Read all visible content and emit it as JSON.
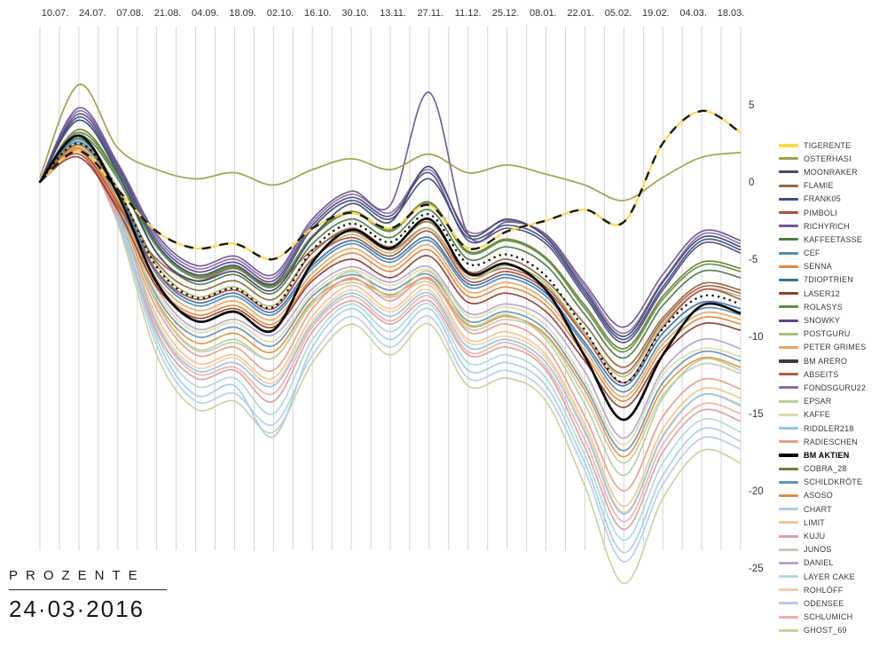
{
  "footer": {
    "title": "PROZENTE",
    "date": "24·03·2016"
  },
  "chart_data": {
    "type": "line",
    "title": "",
    "xlabel": "",
    "ylabel": "Prozente",
    "ylim": [
      -28,
      7
    ],
    "grid": "vertical-weekly",
    "legend_position": "right",
    "y_ticks": [
      5,
      0,
      -5,
      -10,
      -15,
      -20,
      -25
    ],
    "x_labels": [
      "10.07.",
      "24.07.",
      "07.08.",
      "21.08.",
      "04.09.",
      "18.09.",
      "02.10.",
      "16.10.",
      "30.10.",
      "13.11.",
      "27.11.",
      "11.12.",
      "25.12.",
      "08.01.",
      "22.01.",
      "05.02.",
      "19.02.",
      "04.03.",
      "18.03."
    ],
    "series": [
      {
        "name": "TIGERENTE",
        "color": "#ffd84d",
        "style": "duo-dash",
        "width": 2.4,
        "values": [
          0,
          2.0,
          -0.5,
          -3.2,
          -4.3,
          -4.0,
          -5.0,
          -3.0,
          -2.0,
          -3.0,
          -1.5,
          -4.3,
          -3.2,
          -2.5,
          -1.8,
          -2.6,
          2.5,
          4.6,
          3.2
        ]
      },
      {
        "name": "OSTERHASI",
        "color": "#a3a04f",
        "style": "solid",
        "width": 1.8,
        "values": [
          0.3,
          6.3,
          2.2,
          0.8,
          0.2,
          0.6,
          -0.2,
          0.8,
          1.5,
          0.8,
          1.8,
          0.6,
          1.1,
          0.5,
          -0.2,
          -1.2,
          0.3,
          1.6,
          1.9
        ]
      },
      {
        "name": "MOONRAKER",
        "color": "#46466e",
        "style": "solid",
        "width": 1.7,
        "values": [
          0,
          4.0,
          0.6,
          -4.6,
          -6.4,
          -5.8,
          -7.0,
          -3.6,
          -1.4,
          -2.6,
          1.0,
          -3.4,
          -2.4,
          -3.6,
          -7.0,
          -10.0,
          -6.5,
          -3.6,
          -4.2
        ]
      },
      {
        "name": "FLAMIE",
        "color": "#8f6b3f",
        "style": "solid",
        "width": 1.7,
        "values": [
          0,
          2.4,
          -0.6,
          -5.2,
          -7.0,
          -6.4,
          -7.6,
          -4.6,
          -3.0,
          -4.2,
          -2.6,
          -5.8,
          -5.0,
          -6.4,
          -9.2,
          -12.0,
          -8.8,
          -6.6,
          -7.0
        ]
      },
      {
        "name": "FRANK05",
        "color": "#39537f",
        "style": "solid",
        "width": 1.7,
        "values": [
          0,
          4.2,
          0.8,
          -4.0,
          -6.0,
          -5.4,
          -6.6,
          -3.0,
          -1.2,
          -2.4,
          0.2,
          -3.6,
          -2.8,
          -3.8,
          -7.2,
          -10.2,
          -6.8,
          -3.8,
          -4.4
        ]
      },
      {
        "name": "PIMBOLI",
        "color": "#b0513f",
        "style": "solid",
        "width": 1.7,
        "values": [
          0,
          2.0,
          -1.4,
          -5.8,
          -7.6,
          -7.0,
          -8.2,
          -5.0,
          -3.6,
          -4.8,
          -3.2,
          -6.4,
          -5.8,
          -7.0,
          -10.0,
          -13.0,
          -9.4,
          -7.0,
          -7.6
        ]
      },
      {
        "name": "RICHYRICH",
        "color": "#715694",
        "style": "solid",
        "width": 1.7,
        "values": [
          0,
          4.8,
          1.2,
          -3.4,
          -5.4,
          -4.8,
          -6.0,
          -2.4,
          -0.6,
          -1.5,
          5.8,
          -3.4,
          -2.6,
          -3.4,
          -6.6,
          -9.4,
          -6.0,
          -3.2,
          -3.8
        ]
      },
      {
        "name": "KAFFEETASSE",
        "color": "#4f7d46",
        "style": "solid",
        "width": 1.7,
        "values": [
          0,
          3.0,
          0.2,
          -4.6,
          -6.6,
          -6.0,
          -7.2,
          -4.0,
          -2.4,
          -3.6,
          -1.8,
          -5.0,
          -4.2,
          -5.4,
          -8.6,
          -11.4,
          -8.0,
          -5.8,
          -6.2
        ]
      },
      {
        "name": "CEF",
        "color": "#4d8cba",
        "style": "solid",
        "width": 1.7,
        "values": [
          0,
          2.6,
          -0.8,
          -6.0,
          -8.0,
          -7.4,
          -8.6,
          -5.6,
          -4.0,
          -5.2,
          -3.8,
          -6.8,
          -6.2,
          -7.4,
          -10.6,
          -13.6,
          -10.2,
          -8.2,
          -8.6
        ]
      },
      {
        "name": "SENNA",
        "color": "#e2873f",
        "style": "solid",
        "width": 1.7,
        "values": [
          0,
          2.2,
          -1.2,
          -6.6,
          -8.6,
          -8.0,
          -9.2,
          -6.2,
          -4.6,
          -5.8,
          -4.4,
          -7.4,
          -6.8,
          -8.0,
          -11.2,
          -14.2,
          -10.8,
          -8.8,
          -9.2
        ]
      },
      {
        "name": "7DIOPTRIEN",
        "color": "#3f6f9f",
        "style": "solid",
        "width": 1.7,
        "values": [
          0,
          2.8,
          -0.6,
          -5.8,
          -7.8,
          -7.2,
          -8.4,
          -5.4,
          -3.8,
          -5.0,
          -3.6,
          -6.6,
          -6.0,
          -7.2,
          -10.4,
          -13.2,
          -9.8,
          -7.8,
          -8.2
        ]
      },
      {
        "name": "LASER12",
        "color": "#963e30",
        "style": "solid",
        "width": 1.7,
        "values": [
          0,
          1.6,
          -1.8,
          -6.8,
          -8.8,
          -8.2,
          -9.4,
          -6.4,
          -5.0,
          -6.2,
          -4.8,
          -7.8,
          -7.2,
          -8.4,
          -11.6,
          -14.6,
          -11.2,
          -9.2,
          -9.6
        ]
      },
      {
        "name": "ROLASYS",
        "color": "#5f8f44",
        "style": "solid",
        "width": 1.7,
        "values": [
          0,
          3.2,
          0.4,
          -4.2,
          -6.2,
          -5.6,
          -6.8,
          -3.6,
          -2.0,
          -3.2,
          -1.4,
          -4.6,
          -3.8,
          -5.0,
          -8.2,
          -11.0,
          -7.6,
          -5.4,
          -5.8
        ]
      },
      {
        "name": "SNOWKY",
        "color": "#584a86",
        "style": "solid",
        "width": 1.7,
        "values": [
          0,
          4.4,
          1.0,
          -3.8,
          -5.8,
          -5.2,
          -6.4,
          -2.8,
          -1.0,
          -2.2,
          0.6,
          -3.8,
          -3.0,
          -4.0,
          -7.4,
          -10.4,
          -7.0,
          -4.0,
          -4.6
        ]
      },
      {
        "name": "POSTGURU",
        "color": "#a9c178",
        "style": "solid",
        "width": 1.7,
        "values": [
          0,
          2.9,
          -0.4,
          -5.4,
          -7.4,
          -6.8,
          -8.0,
          -5.0,
          -3.4,
          -4.6,
          -3.0,
          -6.2,
          -5.4,
          -6.6,
          -9.8,
          -12.6,
          -9.2,
          -7.0,
          -7.4
        ]
      },
      {
        "name": "PETER GRIMES",
        "color": "#eda55f",
        "style": "solid",
        "width": 1.7,
        "values": [
          0,
          2.1,
          -1.3,
          -6.3,
          -8.3,
          -7.7,
          -8.9,
          -5.9,
          -4.3,
          -5.5,
          -4.1,
          -7.1,
          -6.5,
          -7.7,
          -10.9,
          -13.9,
          -10.5,
          -8.5,
          -8.9
        ]
      },
      {
        "name": "BM ARERO",
        "color": "#3c3c3c",
        "style": "dotted",
        "width": 2.6,
        "values": [
          0,
          2.5,
          -0.5,
          -5.5,
          -7.5,
          -6.9,
          -8.1,
          -4.4,
          -2.7,
          -3.9,
          -2.1,
          -5.3,
          -4.7,
          -6.1,
          -9.6,
          -13.0,
          -9.5,
          -7.4,
          -7.9
        ]
      },
      {
        "name": "ABSEITS",
        "color": "#b35b48",
        "style": "solid",
        "width": 1.7,
        "values": [
          0,
          1.8,
          -1.6,
          -5.0,
          -6.4,
          -5.6,
          -6.6,
          -4.4,
          -3.2,
          -4.4,
          -3.0,
          -6.0,
          -5.6,
          -6.8,
          -9.8,
          -12.4,
          -9.0,
          -6.8,
          -7.2
        ]
      },
      {
        "name": "FONDSGURU22",
        "color": "#8a6fa8",
        "style": "solid",
        "width": 1.7,
        "values": [
          0,
          4.6,
          1.1,
          -3.6,
          -5.6,
          -5.0,
          -6.2,
          -2.6,
          -0.8,
          -2.0,
          0.8,
          -3.2,
          -2.5,
          -3.5,
          -6.8,
          -9.8,
          -6.4,
          -3.4,
          -4.0
        ]
      },
      {
        "name": "EPSAR",
        "color": "#b9cf9a",
        "style": "solid",
        "width": 1.7,
        "values": [
          0,
          2.7,
          -1.0,
          -7.8,
          -10.8,
          -10.2,
          -11.4,
          -7.8,
          -5.8,
          -7.4,
          -5.8,
          -9.2,
          -8.6,
          -10.2,
          -14.4,
          -19.0,
          -14.0,
          -11.5,
          -12.2
        ]
      },
      {
        "name": "KAFFE",
        "color": "#e3d9a8",
        "style": "solid",
        "width": 1.7,
        "values": [
          0,
          2.3,
          -1.7,
          -7.2,
          -9.7,
          -9.1,
          -10.3,
          -7.2,
          -5.7,
          -6.7,
          -5.7,
          -8.7,
          -8.1,
          -9.3,
          -12.9,
          -17.0,
          -12.5,
          -10.8,
          -11.3
        ]
      },
      {
        "name": "RIDDLER218",
        "color": "#8ec6e6",
        "style": "solid",
        "width": 1.7,
        "values": [
          0,
          2.5,
          -1.9,
          -9.2,
          -12.2,
          -11.7,
          -13.2,
          -9.2,
          -7.2,
          -8.7,
          -7.2,
          -10.7,
          -10.2,
          -11.7,
          -16.2,
          -21.5,
          -16.5,
          -13.8,
          -14.5
        ]
      },
      {
        "name": "RADIESCHEN",
        "color": "#eb9c8b",
        "style": "solid",
        "width": 1.7,
        "values": [
          0,
          2.1,
          -2.1,
          -8.2,
          -11.2,
          -10.7,
          -12.2,
          -8.2,
          -6.2,
          -7.7,
          -6.2,
          -9.7,
          -9.2,
          -10.7,
          -15.2,
          -20.0,
          -15.2,
          -12.8,
          -13.4
        ]
      },
      {
        "name": "BM AKTIEN",
        "color": "#000000",
        "style": "solid",
        "width": 2.8,
        "emphasis": true,
        "values": [
          0,
          3.0,
          -0.8,
          -6.5,
          -9.0,
          -8.4,
          -9.6,
          -5.2,
          -3.1,
          -4.3,
          -2.4,
          -5.9,
          -5.3,
          -7.0,
          -11.3,
          -15.4,
          -11.2,
          -8.0,
          -8.5
        ]
      },
      {
        "name": "COBRA_28",
        "color": "#6e7d33",
        "style": "solid",
        "width": 1.7,
        "values": [
          0,
          3.4,
          0.5,
          -4.1,
          -6.1,
          -5.5,
          -6.7,
          -3.5,
          -1.9,
          -3.1,
          -1.3,
          -4.5,
          -3.7,
          -4.9,
          -8.0,
          -10.8,
          -7.4,
          -5.2,
          -5.6
        ]
      },
      {
        "name": "SCHILDKRÖTE",
        "color": "#6694b4",
        "style": "solid",
        "width": 1.7,
        "values": [
          0,
          2.9,
          -1.3,
          -7.4,
          -10.0,
          -9.4,
          -10.6,
          -7.4,
          -6.0,
          -7.0,
          -6.0,
          -9.0,
          -8.4,
          -9.6,
          -13.2,
          -17.4,
          -13.0,
          -11.0,
          -11.6
        ]
      },
      {
        "name": "ASOSO",
        "color": "#de9440",
        "style": "solid",
        "width": 1.7,
        "values": [
          0,
          2.2,
          -1.8,
          -7.7,
          -10.4,
          -9.8,
          -11.0,
          -7.7,
          -6.3,
          -7.3,
          -6.3,
          -9.3,
          -8.7,
          -9.9,
          -13.5,
          -17.8,
          -13.4,
          -11.4,
          -12.0
        ]
      },
      {
        "name": "CHART",
        "color": "#a8cde8",
        "style": "solid",
        "width": 1.7,
        "values": [
          0,
          2.6,
          -2.3,
          -10.2,
          -13.8,
          -13.2,
          -16.5,
          -10.7,
          -8.2,
          -10.2,
          -8.2,
          -12.2,
          -11.7,
          -13.2,
          -18.2,
          -24.0,
          -19.0,
          -16.0,
          -16.8
        ]
      },
      {
        "name": "LIMIT",
        "color": "#f2c491",
        "style": "solid",
        "width": 1.7,
        "values": [
          0,
          2.4,
          -2.0,
          -8.7,
          -11.7,
          -11.2,
          -12.7,
          -8.7,
          -6.7,
          -8.2,
          -6.7,
          -10.2,
          -9.7,
          -11.2,
          -15.7,
          -21.0,
          -16.0,
          -13.4,
          -14.0
        ]
      },
      {
        "name": "KUJU",
        "color": "#d9a0a8",
        "style": "solid",
        "width": 1.7,
        "values": [
          0,
          2.0,
          -2.4,
          -9.7,
          -12.7,
          -12.2,
          -14.2,
          -9.7,
          -7.7,
          -9.2,
          -7.7,
          -11.2,
          -10.7,
          -12.2,
          -17.2,
          -22.5,
          -17.5,
          -14.8,
          -15.5
        ]
      },
      {
        "name": "JUNOS",
        "color": "#c3cbb4",
        "style": "solid",
        "width": 1.7,
        "values": [
          0,
          2.8,
          -1.6,
          -7.9,
          -10.9,
          -10.4,
          -11.4,
          -7.9,
          -6.5,
          -7.5,
          -6.5,
          -9.5,
          -8.9,
          -10.0,
          -13.9,
          -18.2,
          -13.8,
          -11.8,
          -12.4
        ]
      },
      {
        "name": "DANIEL",
        "color": "#b3a6cc",
        "style": "solid",
        "width": 1.7,
        "values": [
          0,
          3.2,
          -1.2,
          -6.9,
          -9.5,
          -8.9,
          -9.9,
          -6.9,
          -5.5,
          -6.5,
          -5.5,
          -8.5,
          -7.9,
          -8.9,
          -12.3,
          -16.6,
          -12.2,
          -10.2,
          -10.8
        ]
      },
      {
        "name": "LAYER CAKE",
        "color": "#aadbd8",
        "style": "solid",
        "width": 1.7,
        "values": [
          0,
          2.7,
          -2.2,
          -9.9,
          -13.2,
          -12.7,
          -15.0,
          -10.2,
          -7.9,
          -9.7,
          -7.9,
          -11.7,
          -11.2,
          -12.7,
          -17.7,
          -23.2,
          -18.2,
          -15.4,
          -16.2
        ]
      },
      {
        "name": "ROHLÖFF",
        "color": "#f2cdaa",
        "style": "solid",
        "width": 1.7,
        "values": [
          0,
          2.3,
          -2.1,
          -9.0,
          -12.0,
          -11.4,
          -13.0,
          -9.0,
          -7.0,
          -8.4,
          -7.0,
          -10.4,
          -10.0,
          -11.4,
          -16.0,
          -21.4,
          -16.4,
          -13.8,
          -14.4
        ]
      },
      {
        "name": "ODENSEE",
        "color": "#b5cfe8",
        "style": "solid",
        "width": 1.7,
        "values": [
          0,
          2.5,
          -2.5,
          -10.6,
          -14.2,
          -13.7,
          -15.7,
          -11.2,
          -8.7,
          -10.7,
          -8.7,
          -12.7,
          -12.2,
          -13.7,
          -18.7,
          -24.6,
          -19.6,
          -16.6,
          -17.3
        ]
      },
      {
        "name": "SCHLUMICH",
        "color": "#eeb0a6",
        "style": "solid",
        "width": 1.7,
        "values": [
          0,
          2.1,
          -2.6,
          -9.4,
          -12.4,
          -12.0,
          -13.7,
          -9.4,
          -7.4,
          -9.0,
          -7.4,
          -11.0,
          -10.4,
          -12.0,
          -16.7,
          -22.0,
          -17.0,
          -14.4,
          -15.0
        ]
      },
      {
        "name": "GHOST_69",
        "color": "#ccd1a0",
        "style": "solid",
        "width": 1.7,
        "values": [
          0,
          2.9,
          -2.7,
          -11.2,
          -14.7,
          -14.2,
          -16.2,
          -11.7,
          -9.2,
          -11.2,
          -9.2,
          -13.2,
          -12.7,
          -14.2,
          -19.7,
          -26.0,
          -20.5,
          -17.4,
          -18.2
        ]
      }
    ]
  }
}
